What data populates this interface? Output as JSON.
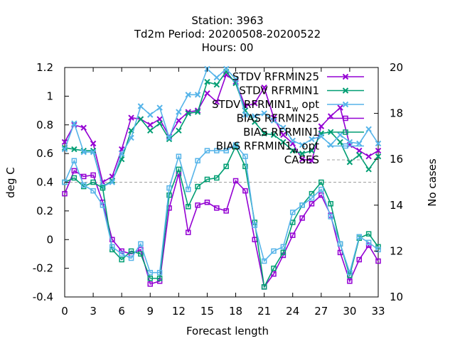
{
  "chart_data": {
    "type": "line",
    "title_lines": [
      "Station:     3963",
      "Td2m   Period: 20200508-20200522",
      "Hours:  00"
    ],
    "xlabel": "Forecast length",
    "ylabel": "deg C",
    "y2label": "No cases",
    "xlim": [
      0,
      33
    ],
    "ylim": [
      -0.4,
      1.2
    ],
    "y2lim": [
      10,
      20
    ],
    "x_ticks": [
      0,
      3,
      6,
      9,
      12,
      15,
      18,
      21,
      24,
      27,
      30,
      33
    ],
    "y_ticks": [
      -0.4,
      -0.2,
      0,
      0.2,
      0.4,
      0.6,
      0.8,
      1,
      1.2
    ],
    "y_tick_labels": [
      "-0.4",
      "-0.2",
      "0",
      "0.2",
      "0.4",
      "0.6",
      "0.8",
      "1",
      "1.2"
    ],
    "y2_ticks": [
      10,
      12,
      14,
      16,
      18,
      20
    ],
    "grid": false,
    "legend_position": "top-right",
    "x": [
      0,
      1,
      2,
      3,
      4,
      5,
      6,
      7,
      8,
      9,
      10,
      11,
      12,
      13,
      14,
      15,
      16,
      17,
      18,
      19,
      20,
      21,
      22,
      23,
      24,
      25,
      26,
      27,
      28,
      29,
      30,
      31,
      32,
      33
    ],
    "series": [
      {
        "name": "STDV RFRMIN25",
        "color": "#9400d3",
        "marker": "x",
        "values": [
          0.68,
          0.8,
          0.78,
          0.67,
          0.4,
          0.44,
          0.63,
          0.85,
          0.84,
          0.8,
          0.84,
          0.72,
          0.83,
          0.89,
          0.9,
          1.02,
          0.96,
          1.15,
          1.1,
          0.93,
          0.95,
          1.06,
          0.85,
          0.73,
          0.67,
          0.56,
          0.55,
          0.79,
          0.86,
          0.92,
          0.66,
          0.62,
          0.58,
          0.62
        ]
      },
      {
        "name": "STDV RFRMIN1",
        "color": "#009e73",
        "marker": "x",
        "values": [
          0.64,
          0.63,
          0.62,
          0.62,
          0.37,
          0.41,
          0.56,
          0.76,
          0.84,
          0.76,
          0.81,
          0.7,
          0.76,
          0.88,
          0.89,
          1.1,
          1.08,
          1.17,
          1.09,
          0.9,
          0.82,
          0.74,
          0.73,
          0.68,
          0.62,
          0.6,
          0.62,
          0.74,
          0.75,
          0.68,
          0.54,
          0.59,
          0.49,
          0.58
        ]
      },
      {
        "name": "STDV RFRMIN1_w_opt",
        "color": "#56b4e9",
        "marker": "x",
        "values": [
          0.63,
          0.81,
          0.61,
          0.61,
          0.37,
          0.4,
          0.6,
          0.71,
          0.93,
          0.87,
          0.92,
          0.71,
          0.89,
          1.01,
          1.01,
          1.19,
          1.13,
          1.19,
          1.12,
          0.87,
          0.86,
          0.88,
          0.83,
          0.78,
          0.69,
          0.66,
          0.7,
          0.72,
          0.66,
          0.73,
          0.68,
          0.67,
          0.77,
          0.67
        ]
      },
      {
        "name": "BIAS RFRMIN25",
        "color": "#9400d3",
        "marker": "square",
        "values": [
          0.32,
          0.48,
          0.44,
          0.45,
          0.26,
          0.0,
          -0.08,
          -0.1,
          -0.07,
          -0.31,
          -0.29,
          0.22,
          0.46,
          0.05,
          0.24,
          0.26,
          0.22,
          0.2,
          0.41,
          0.34,
          0.0,
          -0.33,
          -0.24,
          -0.11,
          0.03,
          0.15,
          0.25,
          0.31,
          0.17,
          -0.09,
          -0.29,
          -0.14,
          -0.04,
          -0.15
        ]
      },
      {
        "name": "BIAS RFRMIN1",
        "color": "#009e73",
        "marker": "square",
        "values": [
          0.4,
          0.43,
          0.37,
          0.4,
          0.36,
          -0.07,
          -0.14,
          -0.08,
          -0.1,
          -0.27,
          -0.27,
          0.31,
          0.49,
          0.23,
          0.37,
          0.42,
          0.43,
          0.51,
          0.65,
          0.51,
          0.12,
          -0.33,
          -0.2,
          -0.09,
          0.12,
          0.24,
          0.32,
          0.4,
          0.25,
          -0.03,
          -0.25,
          0.01,
          0.04,
          -0.05
        ]
      },
      {
        "name": "BIAS RFRMIN1_w_opt",
        "color": "#56b4e9",
        "marker": "square",
        "values": [
          0.4,
          0.55,
          0.38,
          0.34,
          0.24,
          -0.05,
          -0.1,
          -0.13,
          -0.03,
          -0.23,
          -0.23,
          0.36,
          0.58,
          0.35,
          0.55,
          0.62,
          0.62,
          0.62,
          0.66,
          0.58,
          0.1,
          -0.15,
          -0.08,
          -0.05,
          0.19,
          0.24,
          0.29,
          0.35,
          0.16,
          -0.03,
          -0.23,
          0.02,
          -0.02,
          -0.07
        ]
      }
    ],
    "cases": {
      "name": "CASES",
      "color": "#a0a0a0",
      "values_y2": [
        15,
        15,
        15,
        15,
        15,
        15,
        15,
        15,
        15,
        15,
        15,
        15,
        15,
        15,
        15,
        15,
        15,
        15,
        15,
        15,
        15,
        15,
        15,
        15,
        15,
        15,
        15,
        15,
        15,
        15,
        15,
        15,
        15,
        15
      ]
    },
    "legend_labels": [
      "STDV RFRMIN25",
      "STDV RFRMIN1",
      "STDV RFRMIN1",
      "BIAS RFRMIN25",
      "BIAS RFRMIN1",
      "BIAS RFRMIN1",
      "CASES"
    ],
    "legend_subscripts": [
      "",
      "",
      "w",
      "",
      "",
      "w",
      ""
    ],
    "legend_suffixes": [
      "",
      "",
      " opt",
      "",
      "",
      " opt",
      ""
    ]
  }
}
